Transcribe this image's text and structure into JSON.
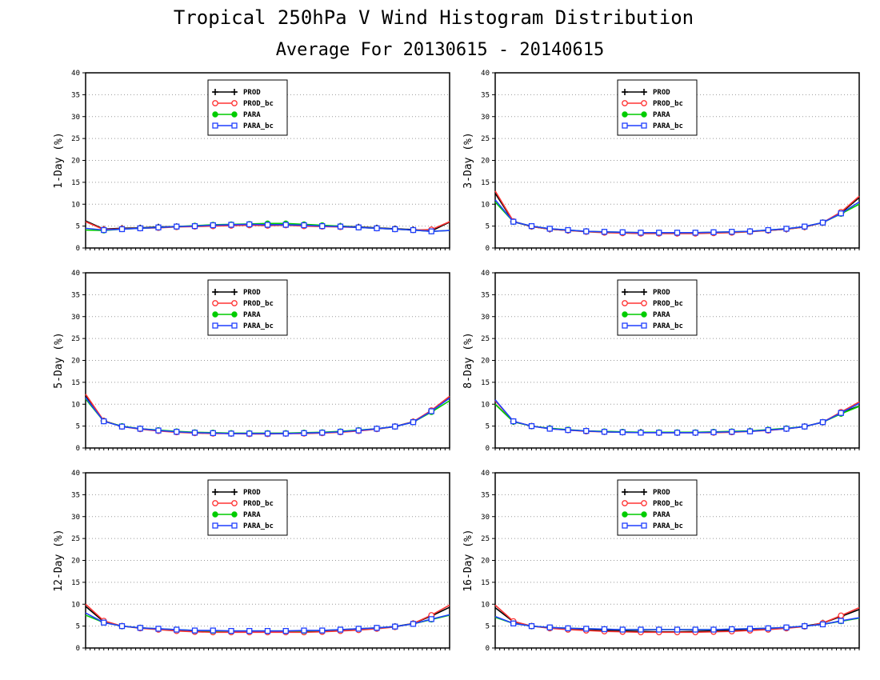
{
  "figure": {
    "title": "Tropical 250hPa V Wind Histogram Distribution",
    "subtitle": "Average For 20130615 - 20140615"
  },
  "legend": [
    {
      "name": "PROD",
      "color": "#000000",
      "marker": "plus"
    },
    {
      "name": "PROD_bc",
      "color": "#ff3333",
      "marker": "open-circle"
    },
    {
      "name": "PARA",
      "color": "#00cc00",
      "marker": "filled-circle"
    },
    {
      "name": "PARA_bc",
      "color": "#1f3fff",
      "marker": "open-square"
    }
  ],
  "chart_data": [
    {
      "type": "line",
      "ylabel": "1-Day (%)",
      "ylim": [
        0,
        40
      ],
      "yticks": [
        0,
        5,
        10,
        15,
        20,
        25,
        30,
        35,
        40
      ],
      "grid": "horizontal-dotted",
      "legend_position": "top-center",
      "x": [
        1,
        2,
        3,
        4,
        5,
        6,
        7,
        8,
        9,
        10,
        11,
        12,
        13,
        14,
        15,
        16,
        17,
        18,
        19,
        20,
        21
      ],
      "series": [
        {
          "name": "PROD",
          "values": [
            6.2,
            4.3,
            4.5,
            4.6,
            4.8,
            4.9,
            5.0,
            5.1,
            5.2,
            5.3,
            5.3,
            5.3,
            5.2,
            5.1,
            5.0,
            4.8,
            4.6,
            4.4,
            4.2,
            3.9,
            5.9
          ]
        },
        {
          "name": "PROD_bc",
          "values": [
            6.0,
            4.2,
            4.4,
            4.5,
            4.6,
            4.8,
            4.9,
            5.0,
            5.1,
            5.2,
            5.1,
            5.2,
            5.0,
            4.9,
            4.8,
            4.7,
            4.5,
            4.3,
            4.1,
            4.2,
            6.0
          ]
        },
        {
          "name": "PARA",
          "values": [
            4.1,
            4.0,
            4.3,
            4.5,
            4.7,
            4.9,
            5.1,
            5.3,
            5.4,
            5.5,
            5.6,
            5.6,
            5.4,
            5.2,
            5.0,
            4.7,
            4.5,
            4.3,
            4.1,
            3.8,
            4.0
          ]
        },
        {
          "name": "PARA_bc",
          "values": [
            4.5,
            4.1,
            4.3,
            4.5,
            4.7,
            4.9,
            5.0,
            5.2,
            5.3,
            5.4,
            5.3,
            5.3,
            5.2,
            5.0,
            4.9,
            4.7,
            4.5,
            4.3,
            4.1,
            3.8,
            4.0
          ]
        }
      ]
    },
    {
      "type": "line",
      "ylabel": "3-Day (%)",
      "ylim": [
        0,
        40
      ],
      "yticks": [
        0,
        5,
        10,
        15,
        20,
        25,
        30,
        35,
        40
      ],
      "grid": "horizontal-dotted",
      "legend_position": "top-center",
      "x": [
        1,
        2,
        3,
        4,
        5,
        6,
        7,
        8,
        9,
        10,
        11,
        12,
        13,
        14,
        15,
        16,
        17,
        18,
        19,
        20,
        21
      ],
      "series": [
        {
          "name": "PROD",
          "values": [
            12.5,
            6.0,
            4.9,
            4.3,
            4.0,
            3.8,
            3.6,
            3.5,
            3.4,
            3.4,
            3.4,
            3.4,
            3.5,
            3.6,
            3.8,
            4.0,
            4.3,
            4.8,
            5.8,
            8.0,
            11.5
          ]
        },
        {
          "name": "PROD_bc",
          "values": [
            13.0,
            6.1,
            4.9,
            4.3,
            4.0,
            3.7,
            3.5,
            3.4,
            3.3,
            3.3,
            3.3,
            3.3,
            3.4,
            3.5,
            3.7,
            4.0,
            4.3,
            4.8,
            5.8,
            8.2,
            11.8
          ]
        },
        {
          "name": "PARA",
          "values": [
            10.5,
            6.0,
            5.0,
            4.4,
            4.1,
            3.8,
            3.7,
            3.6,
            3.5,
            3.5,
            3.5,
            3.5,
            3.6,
            3.7,
            3.8,
            4.1,
            4.4,
            4.9,
            5.8,
            7.8,
            10.0
          ]
        },
        {
          "name": "PARA_bc",
          "values": [
            11.0,
            6.0,
            5.0,
            4.4,
            4.1,
            3.8,
            3.7,
            3.6,
            3.5,
            3.5,
            3.5,
            3.5,
            3.6,
            3.7,
            3.8,
            4.1,
            4.4,
            4.9,
            5.8,
            7.9,
            10.5
          ]
        }
      ]
    },
    {
      "type": "line",
      "ylabel": "5-Day (%)",
      "ylim": [
        0,
        40
      ],
      "yticks": [
        0,
        5,
        10,
        15,
        20,
        25,
        30,
        35,
        40
      ],
      "grid": "horizontal-dotted",
      "legend_position": "top-center",
      "x": [
        1,
        2,
        3,
        4,
        5,
        6,
        7,
        8,
        9,
        10,
        11,
        12,
        13,
        14,
        15,
        16,
        17,
        18,
        19,
        20,
        21
      ],
      "series": [
        {
          "name": "PROD",
          "values": [
            12.0,
            6.2,
            4.9,
            4.4,
            4.0,
            3.7,
            3.5,
            3.4,
            3.3,
            3.3,
            3.3,
            3.3,
            3.4,
            3.5,
            3.7,
            4.0,
            4.4,
            4.9,
            6.0,
            8.5,
            11.5
          ]
        },
        {
          "name": "PROD_bc",
          "values": [
            12.3,
            6.2,
            4.9,
            4.3,
            3.9,
            3.6,
            3.4,
            3.3,
            3.3,
            3.2,
            3.2,
            3.3,
            3.3,
            3.4,
            3.6,
            3.9,
            4.3,
            4.9,
            6.0,
            8.6,
            11.8
          ]
        },
        {
          "name": "PARA",
          "values": [
            11.2,
            6.1,
            5.0,
            4.4,
            4.1,
            3.8,
            3.6,
            3.5,
            3.4,
            3.4,
            3.4,
            3.4,
            3.5,
            3.6,
            3.8,
            4.1,
            4.4,
            4.9,
            5.9,
            8.2,
            10.8
          ]
        },
        {
          "name": "PARA_bc",
          "values": [
            11.5,
            6.1,
            4.9,
            4.4,
            4.0,
            3.7,
            3.5,
            3.4,
            3.3,
            3.3,
            3.3,
            3.3,
            3.4,
            3.5,
            3.7,
            4.0,
            4.4,
            4.9,
            5.9,
            8.4,
            11.4
          ]
        }
      ]
    },
    {
      "type": "line",
      "ylabel": "8-Day (%)",
      "ylim": [
        0,
        40
      ],
      "yticks": [
        0,
        5,
        10,
        15,
        20,
        25,
        30,
        35,
        40
      ],
      "grid": "horizontal-dotted",
      "legend_position": "top-center",
      "x": [
        1,
        2,
        3,
        4,
        5,
        6,
        7,
        8,
        9,
        10,
        11,
        12,
        13,
        14,
        15,
        16,
        17,
        18,
        19,
        20,
        21
      ],
      "series": [
        {
          "name": "PROD",
          "values": [
            10.0,
            6.0,
            5.0,
            4.5,
            4.1,
            3.9,
            3.7,
            3.6,
            3.6,
            3.5,
            3.5,
            3.5,
            3.6,
            3.7,
            3.9,
            4.1,
            4.4,
            4.9,
            5.9,
            8.0,
            9.6
          ]
        },
        {
          "name": "PROD_bc",
          "values": [
            10.8,
            6.1,
            5.0,
            4.4,
            4.1,
            3.8,
            3.7,
            3.6,
            3.5,
            3.5,
            3.5,
            3.5,
            3.5,
            3.6,
            3.8,
            4.0,
            4.4,
            4.9,
            5.9,
            8.2,
            10.5
          ]
        },
        {
          "name": "PARA",
          "values": [
            10.0,
            6.0,
            5.0,
            4.5,
            4.2,
            3.9,
            3.8,
            3.7,
            3.6,
            3.6,
            3.6,
            3.6,
            3.7,
            3.8,
            3.9,
            4.2,
            4.5,
            4.9,
            5.9,
            7.8,
            9.5
          ]
        },
        {
          "name": "PARA_bc",
          "values": [
            11.0,
            6.1,
            5.0,
            4.4,
            4.1,
            3.9,
            3.7,
            3.6,
            3.5,
            3.5,
            3.5,
            3.5,
            3.6,
            3.7,
            3.8,
            4.1,
            4.4,
            4.9,
            5.9,
            8.0,
            10.2
          ]
        }
      ]
    },
    {
      "type": "line",
      "ylabel": "12-Day (%)",
      "ylim": [
        0,
        40
      ],
      "yticks": [
        0,
        5,
        10,
        15,
        20,
        25,
        30,
        35,
        40
      ],
      "grid": "horizontal-dotted",
      "legend_position": "top-center",
      "x": [
        1,
        2,
        3,
        4,
        5,
        6,
        7,
        8,
        9,
        10,
        11,
        12,
        13,
        14,
        15,
        16,
        17,
        18,
        19,
        20,
        21
      ],
      "series": [
        {
          "name": "PROD",
          "values": [
            9.5,
            6.0,
            5.0,
            4.6,
            4.3,
            4.0,
            3.8,
            3.7,
            3.7,
            3.7,
            3.7,
            3.7,
            3.7,
            3.8,
            4.0,
            4.2,
            4.5,
            4.9,
            5.6,
            7.3,
            9.3
          ]
        },
        {
          "name": "PROD_bc",
          "values": [
            10.0,
            6.2,
            5.0,
            4.5,
            4.2,
            3.9,
            3.7,
            3.6,
            3.6,
            3.6,
            3.6,
            3.6,
            3.6,
            3.7,
            3.9,
            4.1,
            4.4,
            4.8,
            5.6,
            7.5,
            9.8
          ]
        },
        {
          "name": "PARA",
          "values": [
            7.5,
            5.8,
            5.0,
            4.6,
            4.4,
            4.2,
            4.0,
            3.9,
            3.9,
            3.9,
            3.9,
            3.9,
            3.9,
            4.0,
            4.2,
            4.4,
            4.6,
            4.9,
            5.5,
            6.5,
            7.5
          ]
        },
        {
          "name": "PARA_bc",
          "values": [
            8.0,
            5.8,
            5.0,
            4.6,
            4.4,
            4.2,
            4.0,
            4.0,
            3.9,
            3.9,
            3.9,
            3.9,
            4.0,
            4.0,
            4.2,
            4.4,
            4.6,
            4.9,
            5.5,
            6.6,
            7.6
          ]
        }
      ]
    },
    {
      "type": "line",
      "ylabel": "16-Day (%)",
      "ylim": [
        0,
        40
      ],
      "yticks": [
        0,
        5,
        10,
        15,
        20,
        25,
        30,
        35,
        40
      ],
      "grid": "horizontal-dotted",
      "legend_position": "top-center",
      "x": [
        1,
        2,
        3,
        4,
        5,
        6,
        7,
        8,
        9,
        10,
        11,
        12,
        13,
        14,
        15,
        16,
        17,
        18,
        19,
        20,
        21
      ],
      "series": [
        {
          "name": "PROD",
          "values": [
            9.2,
            6.0,
            5.0,
            4.6,
            4.3,
            4.1,
            4.0,
            3.9,
            3.8,
            3.7,
            3.7,
            3.8,
            3.9,
            4.0,
            4.1,
            4.3,
            4.6,
            5.0,
            5.7,
            7.2,
            8.8
          ]
        },
        {
          "name": "PROD_bc",
          "values": [
            9.8,
            6.1,
            5.0,
            4.5,
            4.2,
            4.0,
            3.8,
            3.7,
            3.6,
            3.6,
            3.6,
            3.6,
            3.7,
            3.8,
            4.0,
            4.2,
            4.5,
            4.9,
            5.7,
            7.4,
            9.2
          ]
        },
        {
          "name": "PARA",
          "values": [
            7.0,
            5.6,
            5.0,
            4.7,
            4.5,
            4.4,
            4.3,
            4.2,
            4.2,
            4.2,
            4.2,
            4.2,
            4.2,
            4.3,
            4.4,
            4.5,
            4.7,
            5.0,
            5.4,
            6.1,
            6.8
          ]
        },
        {
          "name": "PARA_bc",
          "values": [
            7.2,
            5.6,
            5.0,
            4.7,
            4.5,
            4.4,
            4.3,
            4.2,
            4.2,
            4.2,
            4.2,
            4.2,
            4.2,
            4.3,
            4.4,
            4.5,
            4.7,
            5.0,
            5.4,
            6.2,
            6.9
          ]
        }
      ]
    }
  ]
}
